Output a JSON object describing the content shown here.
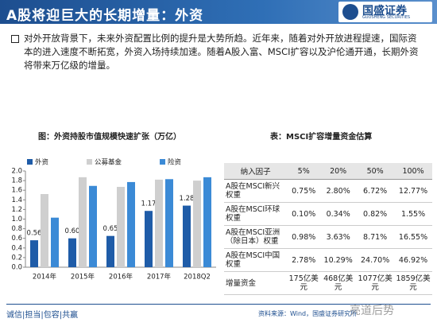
{
  "header": {
    "title": "A股将迎巨大的长期增量：外资",
    "logo": "国盛证券",
    "logo_en": "GUOSHENG SECURITIES"
  },
  "body": {
    "text": "对外开放背景下，未来外资配置比例的提升是大势所趋。近年来，随着对外开放进程提速，国际资本的进入速度不断拓宽，外资入场持续加速。随着A股入富、MSCI扩容以及沪伦通开通，长期外资将带来万亿级的增量。"
  },
  "chart_data": {
    "type": "bar",
    "title": "图：外资持股市值规模快速扩张（万亿）",
    "categories": [
      "2014年",
      "2015年",
      "2016年",
      "2017年",
      "2018Q2"
    ],
    "series": [
      {
        "name": "外资",
        "color": "#1f5ca8",
        "values": [
          0.56,
          0.6,
          0.65,
          1.17,
          1.28
        ],
        "value_labels": [
          "0.56",
          "0.60",
          "0.65",
          "1.17",
          "1.28"
        ]
      },
      {
        "name": "公募基金",
        "color": "#cfcfcf",
        "values": [
          1.52,
          1.87,
          1.67,
          1.82,
          1.8
        ]
      },
      {
        "name": "险资",
        "color": "#3b8ad6",
        "values": [
          1.03,
          1.69,
          1.77,
          1.83,
          1.87
        ]
      }
    ],
    "ylim": [
      0,
      2
    ],
    "yticks": [
      {
        "value": 0,
        "label": "0.0"
      },
      0.2,
      0.4,
      0.6,
      0.8,
      {
        "value": 1,
        "label": "1.0"
      },
      1.2,
      1.4,
      1.6,
      1.8,
      {
        "value": 2,
        "label": "2.0"
      }
    ]
  },
  "table": {
    "title": "表：MSCI扩容增量资金估算",
    "header": [
      "纳入因子",
      "5%",
      "20%",
      "50%",
      "100%"
    ],
    "rows": [
      [
        "A股在MSCI新兴权重",
        "0.75%",
        "2.80%",
        "6.72%",
        "12.77%"
      ],
      [
        "A股在MSCI环球权重",
        "0.10%",
        "0.34%",
        "0.82%",
        "1.55%"
      ],
      [
        "A股在MSCI亚洲（除日本）权重",
        "0.98%",
        "3.63%",
        "8.71%",
        "16.55%"
      ],
      [
        "A股在MSCI中国权重",
        "2.78%",
        "10.29%",
        "24.70%",
        "46.92%"
      ],
      [
        "增量资金",
        "175亿美元",
        "468亿美元",
        "1077亿美元",
        "1859亿美元"
      ]
    ]
  },
  "footer": {
    "motto": "诚信|担当|包容|共赢",
    "source": "资料来源：Wind，国盛证券研究所",
    "watermark": "亮道后势"
  }
}
